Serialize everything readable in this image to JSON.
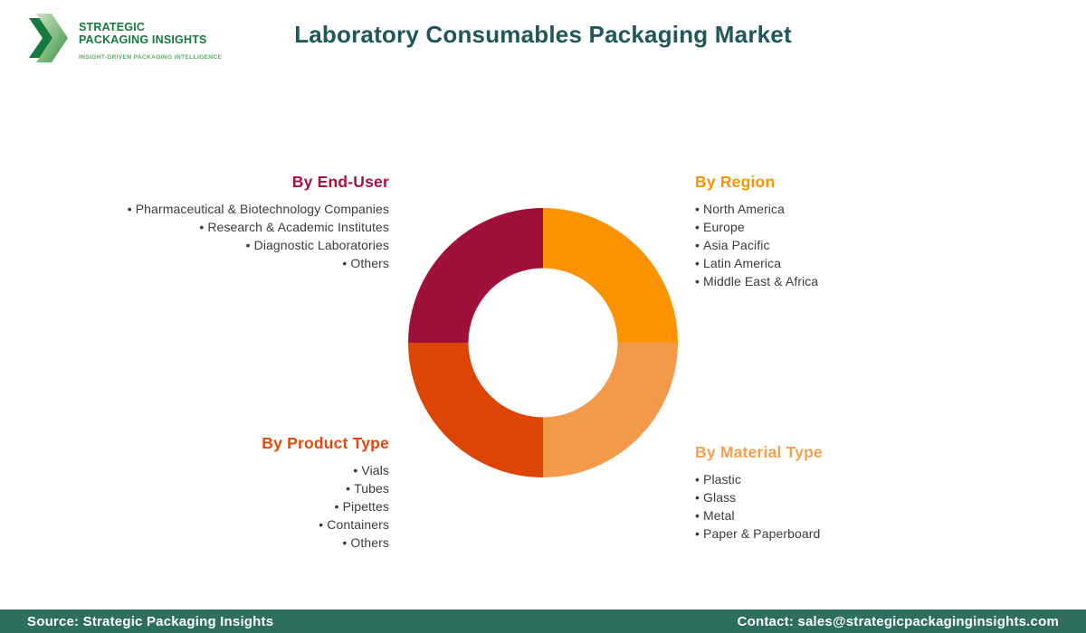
{
  "brand": {
    "name_line1": "STRATEGIC",
    "name_line2": "PACKAGING INSIGHTS",
    "tagline": "INSIGHT-DRIVEN PACKAGING INTELLIGENCE",
    "name_color": "#157a3c",
    "tagline_color": "#5ba862"
  },
  "title": "Laboratory Consumables Packaging Market",
  "title_color": "#20565c",
  "segments": [
    {
      "id": "end-user",
      "heading": "By End-User",
      "heading_color": "#a8123e",
      "align": "right",
      "items": [
        "Pharmaceutical & Biotechnology Companies",
        "Research & Academic Institutes",
        "Diagnostic Laboratories",
        "Others"
      ]
    },
    {
      "id": "region",
      "heading": "By Region",
      "heading_color": "#fb9301",
      "align": "left",
      "items": [
        "North America",
        "Europe",
        "Asia Pacific",
        "Latin America",
        "Middle East & Africa"
      ]
    },
    {
      "id": "product-type",
      "heading": "By Product Type",
      "heading_color": "#e04b0c",
      "align": "right",
      "items": [
        "Vials",
        "Tubes",
        "Pipettes",
        "Containers",
        "Others"
      ]
    },
    {
      "id": "material-type",
      "heading": "By Material Type",
      "heading_color": "#f5a04f",
      "align": "left",
      "items": [
        "Plastic",
        "Glass",
        "Metal",
        "Paper & Paperboard"
      ]
    }
  ],
  "chart_data": {
    "type": "pie",
    "subtype": "donut",
    "title": "Laboratory Consumables Packaging Market segmentation wheel",
    "legend_position": "none",
    "inner_radius_ratio": 0.55,
    "start_angle_deg": 0,
    "direction": "clockwise",
    "segments": [
      {
        "label": "By Region",
        "value": 25,
        "color": "#fb9300",
        "position": "top-right"
      },
      {
        "label": "By Material Type",
        "value": 25,
        "color": "#f2994a",
        "position": "bottom-right"
      },
      {
        "label": "By Product Type",
        "value": 25,
        "color": "#dd4505",
        "position": "bottom-left"
      },
      {
        "label": "By End-User",
        "value": 25,
        "color": "#a0113a",
        "position": "top-left"
      }
    ]
  },
  "footer": {
    "source": "Source: Strategic Packaging Insights",
    "contact": "Contact: sales@strategicpackaginginsights.com",
    "bar_color": "#2d6e5e"
  }
}
